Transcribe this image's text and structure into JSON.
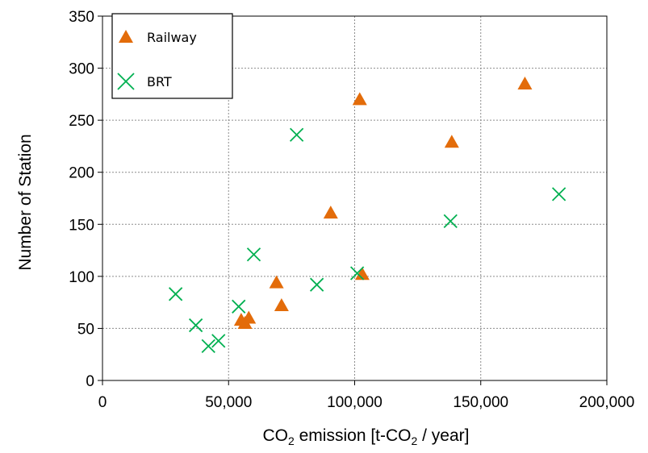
{
  "chart_data": {
    "type": "scatter",
    "xlabel": {
      "base": "CO",
      "sub": "2",
      "mid": " emission [t-CO",
      "sub2": "2",
      "end": " / year]"
    },
    "ylabel": "Number of Station",
    "xlim": [
      0,
      200000
    ],
    "ylim": [
      0,
      350
    ],
    "x_ticks": [
      0,
      50000,
      100000,
      150000,
      200000
    ],
    "x_tick_labels": [
      "0",
      "50,000",
      "100,000",
      "150,000",
      "200,000"
    ],
    "y_ticks": [
      0,
      50,
      100,
      150,
      200,
      250,
      300,
      350
    ],
    "y_tick_labels": [
      "0",
      "50",
      "100",
      "150",
      "200",
      "250",
      "300",
      "350"
    ],
    "grid": true,
    "legend_position": "top-left",
    "series": [
      {
        "name": "Railway",
        "marker": "triangle",
        "color": "#E36C0A",
        "points": [
          [
            55000,
            58
          ],
          [
            56500,
            55
          ],
          [
            58000,
            60
          ],
          [
            69000,
            94
          ],
          [
            71000,
            72
          ],
          [
            90500,
            161
          ],
          [
            102000,
            270
          ],
          [
            103000,
            102
          ],
          [
            138500,
            229
          ],
          [
            167500,
            285
          ]
        ]
      },
      {
        "name": "BRT",
        "marker": "x",
        "color": "#00B050",
        "points": [
          [
            29000,
            83
          ],
          [
            37000,
            53
          ],
          [
            42000,
            33
          ],
          [
            46000,
            38
          ],
          [
            54000,
            71
          ],
          [
            60000,
            121
          ],
          [
            77000,
            236
          ],
          [
            85000,
            92
          ],
          [
            101000,
            103
          ],
          [
            138000,
            153
          ],
          [
            181000,
            179
          ]
        ]
      }
    ]
  }
}
